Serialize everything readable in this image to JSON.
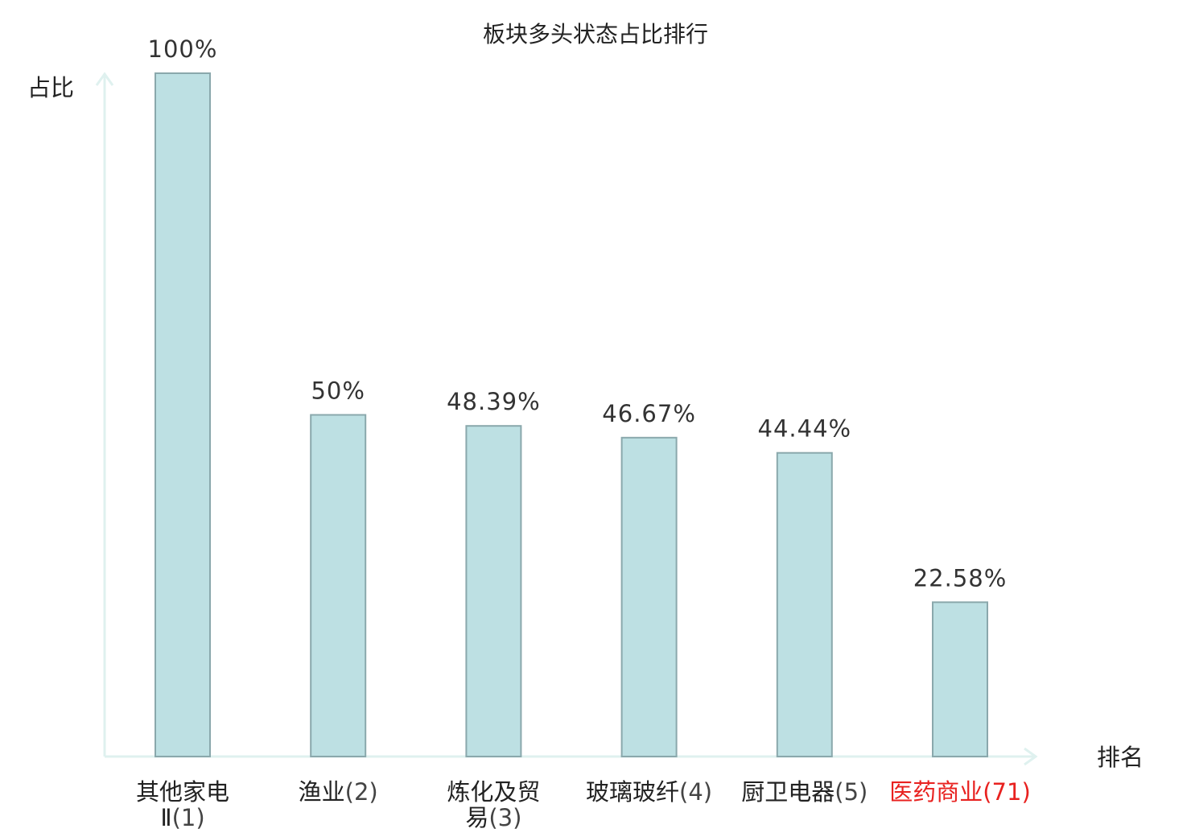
{
  "chart_data": {
    "type": "bar",
    "title": "板块多头状态占比排行",
    "ylabel": "占比",
    "xlabel": "排名",
    "ylim": [
      0,
      100
    ],
    "grid": false,
    "categories": [
      {
        "lines": [
          "其他家电",
          "Ⅱ"
        ],
        "rank": "(1)",
        "value": 100,
        "label": "100%",
        "highlight": false
      },
      {
        "lines": [
          "渔业"
        ],
        "rank": "(2)",
        "value": 50,
        "label": "50%",
        "highlight": false
      },
      {
        "lines": [
          "炼化及贸",
          "易"
        ],
        "rank": "(3)",
        "value": 48.39,
        "label": "48.39%",
        "highlight": false
      },
      {
        "lines": [
          "玻璃玻纤"
        ],
        "rank": "(4)",
        "value": 46.67,
        "label": "46.67%",
        "highlight": false
      },
      {
        "lines": [
          "厨卫电器"
        ],
        "rank": "(5)",
        "value": 44.44,
        "label": "44.44%",
        "highlight": false
      },
      {
        "lines": [
          "医药商业"
        ],
        "rank": "(71)",
        "value": 22.58,
        "label": "22.58%",
        "highlight": true
      }
    ],
    "colors": {
      "bar_fill": "#bde0e3",
      "bar_stroke": "#8aa8ac",
      "axis": "#dff1ef",
      "text": "#222222",
      "rank_text": "#444444",
      "highlight": "#e8211f"
    }
  }
}
